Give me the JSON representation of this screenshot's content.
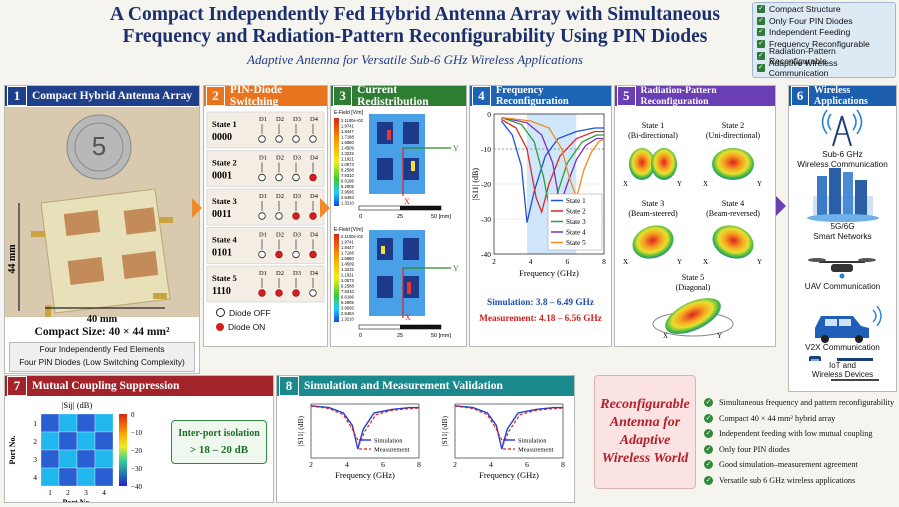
{
  "title": "A Compact Independently Fed Hybrid Antenna Array with Simultaneous Frequency and Radiation-Pattern Reconfigurability Using PIN Diodes",
  "subtitle": "Adaptive Antenna for Versatile Sub-6 GHz Wireless Applications",
  "features": [
    "Compact Structure",
    "Only Four PIN Diodes",
    "Independent Feeding",
    "Frequency Reconfigurable",
    "Radiation-Pattern Reconfigurable",
    "Adaptive Wireless Communication"
  ],
  "panel1": {
    "num": "1",
    "title": "Compact Hybrid Antenna Array",
    "dim_v": "44 mm",
    "dim_h": "40 mm",
    "coin": "5",
    "compact_size": "Compact Size: 40 × 44 mm²",
    "note1": "Four Independently Fed Elements",
    "note2": "Four PIN Diodes (Low Switching Complexity)"
  },
  "panel2": {
    "num": "2",
    "title": "PIN-Diode Switching",
    "states": [
      {
        "name": "State 1",
        "code": "0000"
      },
      {
        "name": "State 2",
        "code": "0001"
      },
      {
        "name": "State 3",
        "code": "0011"
      },
      {
        "name": "State 4",
        "code": "0101"
      },
      {
        "name": "State 5",
        "code": "1110"
      }
    ],
    "diodes": [
      "D1",
      "D2",
      "D3",
      "D4"
    ],
    "legend_off": "Diode OFF",
    "legend_on": "Diode ON"
  },
  "panel3": {
    "num": "3",
    "title": "Current Redistribution",
    "efield": "E-Field [V/m]",
    "scale1": [
      "2.1100e+02",
      "1.9741",
      "1.8447",
      "1.7188",
      "1.5860",
      "1.4509",
      "1.3232",
      "1.1921",
      "1.0573",
      "9.2588",
      "7.9310",
      "6.6196",
      "5.2905",
      "3.9595",
      "2.6484",
      "1.3210"
    ],
    "scale2": [
      "2.1100e+02",
      "1.9741",
      "1.8447",
      "1.7188",
      "1.5860",
      "1.4509",
      "1.3232",
      "1.1921",
      "1.0573",
      "9.2588",
      "7.9310",
      "6.6196",
      "5.2905",
      "3.9595",
      "2.6484",
      "1.3210"
    ],
    "axis_y": "Y",
    "axis_x": "X",
    "ruler": [
      "0",
      "25",
      "50 [mm]"
    ]
  },
  "panel4": {
    "num": "4",
    "title": "Frequency Reconfiguration",
    "ylabel": "|S11| (dB)",
    "xlabel": "Frequency (GHz)",
    "sim": "Simulation:  3.8 – 6.49 GHz",
    "meas": "Measurement:  4.18 – 6.56 GHz"
  },
  "chart_data": {
    "type": "line",
    "xlabel": "Frequency (GHz)",
    "ylabel": "|S11| (dB)",
    "xlim": [
      2,
      8
    ],
    "ylim": [
      -40,
      0
    ],
    "xticks": [
      2,
      4,
      6,
      8
    ],
    "yticks": [
      0,
      -10,
      -20,
      -30,
      -40
    ],
    "series": [
      {
        "name": "State 1",
        "color": "#1f4fd6",
        "x": [
          2.4,
          3.0,
          3.5,
          3.8,
          4.2,
          4.8,
          5.5,
          6.5,
          7.5,
          8
        ],
        "y": [
          -2,
          -6,
          -15,
          -31,
          -22,
          -12,
          -7,
          -5,
          -4,
          -4
        ]
      },
      {
        "name": "State 2",
        "color": "#d62b2b",
        "x": [
          2.4,
          3.2,
          3.8,
          4.3,
          4.6,
          5.0,
          5.6,
          6.5,
          7.5,
          8
        ],
        "y": [
          -1.5,
          -4,
          -10,
          -24,
          -28,
          -20,
          -12,
          -7,
          -5,
          -5
        ]
      },
      {
        "name": "State 3",
        "color": "#2e9c3a",
        "x": [
          2.4,
          3.5,
          4.2,
          4.7,
          5.1,
          5.5,
          6.0,
          6.8,
          7.6,
          8
        ],
        "y": [
          -1,
          -3,
          -8,
          -18,
          -29,
          -22,
          -14,
          -8,
          -6,
          -6
        ]
      },
      {
        "name": "State 4",
        "color": "#7e2fb8",
        "x": [
          2.4,
          3.8,
          4.6,
          5.2,
          5.6,
          6.0,
          6.5,
          7.0,
          7.6,
          8
        ],
        "y": [
          -1,
          -2.5,
          -6,
          -14,
          -26,
          -20,
          -13,
          -9,
          -7,
          -7
        ]
      },
      {
        "name": "State 5",
        "color": "#f08a1c",
        "x": [
          2.4,
          4.0,
          5.0,
          5.7,
          6.1,
          6.5,
          6.9,
          7.3,
          7.7,
          8
        ],
        "y": [
          -1,
          -2,
          -4,
          -10,
          -18,
          -24,
          -16,
          -11,
          -8,
          -7
        ]
      }
    ]
  },
  "panel5": {
    "num": "5",
    "title": "Radiation-Pattern Reconfiguration",
    "states": [
      {
        "name": "State 1",
        "desc": "(Bi-directional)"
      },
      {
        "name": "State 2",
        "desc": "(Uni-directional)"
      },
      {
        "name": "State 3",
        "desc": "(Beam-steered)"
      },
      {
        "name": "State 4",
        "desc": "(Beam-reversed)"
      },
      {
        "name": "State 5",
        "desc": "(Diagonal)"
      }
    ]
  },
  "panel6": {
    "num": "6",
    "title": "Wireless Applications",
    "apps": [
      "Sub-6 GHz\nWireless Communication",
      "5G/6G\nSmart Networks",
      "UAV Communication",
      "V2X Communication",
      "IoT and\nWireless Devices"
    ]
  },
  "panel7": {
    "num": "7",
    "title": "Mutual Coupling Suppression",
    "map_title": "|Sij| (dB)",
    "ylabel": "Port No.",
    "xlabel": "Port No.",
    "ticks": [
      "1",
      "2",
      "3",
      "4"
    ],
    "cbar": [
      "0",
      "−10",
      "−20",
      "−30",
      "−40"
    ],
    "isolation_label": "Inter-port isolation",
    "isolation_value": "> 18 – 20 dB"
  },
  "panel8": {
    "num": "8",
    "title": "Simulation and Measurement Validation",
    "ylabel1": "|S11| (dB)",
    "ylabel2": "|S11| (dB)",
    "xlabel": "Frequency (GHz)",
    "xticks": [
      "2",
      "4",
      "6",
      "8"
    ],
    "leg_sim": "Simulation",
    "leg_meas": "Measurement"
  },
  "slogan": "Reconfigurable Antenna for Adaptive Wireless World",
  "summary": [
    "Simultaneous frequency and pattern reconfigurability",
    "Compact 40 × 44 mm² hybrid array",
    "Independent feeding with low mutual coupling",
    "Only four PIN diodes",
    "Good simulation–measurement agreement",
    "Versatile sub 6 GHz wireless applications"
  ],
  "colors": {
    "p1": "#1f3f8a",
    "p2": "#e8741f",
    "p3": "#2e7d32",
    "p4": "#1e64b4",
    "p5": "#6a3fb3",
    "p6": "#1c5fae",
    "p7": "#a3232a",
    "p8": "#1a8a8e",
    "title": "#1b2f6e"
  }
}
